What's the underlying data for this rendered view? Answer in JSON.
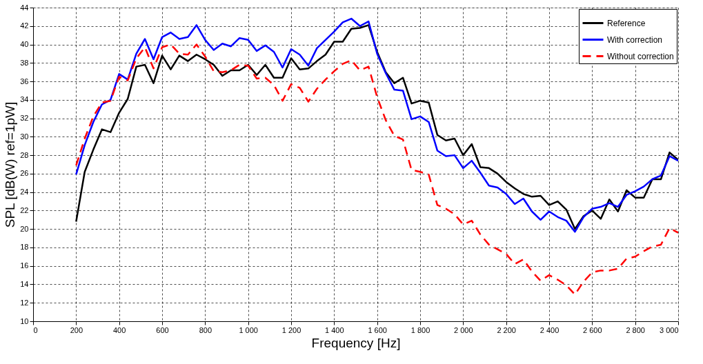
{
  "chart_data": {
    "type": "line",
    "xlabel": "Frequency [Hz]",
    "ylabel": "SPL [dB(W) ref=1pW]",
    "x": [
      200,
      240,
      280,
      320,
      360,
      400,
      440,
      480,
      520,
      560,
      600,
      640,
      680,
      720,
      760,
      800,
      840,
      880,
      920,
      960,
      1000,
      1040,
      1080,
      1120,
      1160,
      1200,
      1240,
      1280,
      1320,
      1360,
      1400,
      1440,
      1480,
      1520,
      1560,
      1600,
      1640,
      1680,
      1720,
      1760,
      1800,
      1840,
      1880,
      1920,
      1960,
      2000,
      2040,
      2080,
      2120,
      2160,
      2200,
      2240,
      2280,
      2320,
      2360,
      2400,
      2440,
      2480,
      2520,
      2560,
      2600,
      2640,
      2680,
      2720,
      2760,
      2800,
      2840,
      2880,
      2920,
      2960,
      3000
    ],
    "series": [
      {
        "name": "Reference",
        "color": "#000000",
        "line_style": "solid",
        "values": [
          20.8,
          26.2,
          28.6,
          30.8,
          30.5,
          32.6,
          34.1,
          37.6,
          37.8,
          35.8,
          38.8,
          37.3,
          38.8,
          38.2,
          38.9,
          38.4,
          37.8,
          36.6,
          37.2,
          37.2,
          37.8,
          36.7,
          37.8,
          36.4,
          36.4,
          38.5,
          37.3,
          37.4,
          38.2,
          38.9,
          40.3,
          40.3,
          41.7,
          41.8,
          42.1,
          39.2,
          37.0,
          35.8,
          36.4,
          33.6,
          33.9,
          33.7,
          30.2,
          29.6,
          29.8,
          28.0,
          29.2,
          26.7,
          26.6,
          26.0,
          25.1,
          24.4,
          23.8,
          23.5,
          23.6,
          22.6,
          23.0,
          22.1,
          20.0,
          21.4,
          22.0,
          21.1,
          23.2,
          21.9,
          24.2,
          23.4,
          23.4,
          25.4,
          25.4,
          28.3,
          27.5
        ]
      },
      {
        "name": "With correction",
        "color": "#0000ff",
        "line_style": "solid",
        "values": [
          25.9,
          29.1,
          31.6,
          33.5,
          34.0,
          36.8,
          36.2,
          39.0,
          40.6,
          38.4,
          40.8,
          41.3,
          40.6,
          40.8,
          42.1,
          40.5,
          39.4,
          40.1,
          39.8,
          40.7,
          40.5,
          39.3,
          39.9,
          39.2,
          37.5,
          39.5,
          38.9,
          37.7,
          39.6,
          40.5,
          41.4,
          42.4,
          42.8,
          42.0,
          42.5,
          39.0,
          36.9,
          35.1,
          35.0,
          31.9,
          32.2,
          31.6,
          28.5,
          27.9,
          28.0,
          26.6,
          27.4,
          26.1,
          24.7,
          24.5,
          23.8,
          22.7,
          23.3,
          21.9,
          21.0,
          21.9,
          21.3,
          20.9,
          19.7,
          21.3,
          22.2,
          22.4,
          22.8,
          22.4,
          23.7,
          24.1,
          24.6,
          25.4,
          25.8,
          27.9,
          27.4
        ]
      },
      {
        "name": "Without correction",
        "color": "#ff0000",
        "line_style": "dashed",
        "values": [
          26.9,
          29.8,
          32.2,
          33.7,
          33.9,
          36.5,
          36.1,
          38.5,
          39.7,
          37.4,
          39.7,
          40.0,
          39.0,
          38.9,
          40.0,
          38.7,
          37.1,
          37.0,
          37.2,
          37.8,
          37.7,
          36.3,
          36.4,
          35.6,
          33.9,
          35.7,
          35.3,
          33.8,
          35.2,
          36.2,
          37.1,
          37.9,
          38.3,
          37.2,
          37.6,
          34.3,
          31.8,
          30.1,
          29.7,
          26.4,
          26.2,
          25.9,
          22.6,
          22.2,
          21.6,
          20.5,
          20.9,
          19.4,
          18.3,
          17.8,
          17.3,
          16.2,
          16.7,
          15.4,
          14.4,
          15.0,
          14.5,
          13.9,
          12.9,
          14.3,
          15.3,
          15.5,
          15.5,
          15.7,
          16.8,
          17.0,
          17.6,
          18.1,
          18.3,
          20.1,
          19.6
        ]
      }
    ],
    "xlim": [
      0,
      3000
    ],
    "xticks": [
      0,
      200,
      400,
      600,
      800,
      {
        "value": 1000,
        "label": "1 000"
      },
      {
        "value": 1200,
        "label": "1 200"
      },
      {
        "value": 1400,
        "label": "1 400"
      },
      {
        "value": 1600,
        "label": "1 600"
      },
      {
        "value": 1800,
        "label": "1 800"
      },
      {
        "value": 2000,
        "label": "2 000"
      },
      {
        "value": 2200,
        "label": "2 200"
      },
      {
        "value": 2400,
        "label": "2 400"
      },
      {
        "value": 2600,
        "label": "2 600"
      },
      {
        "value": 2800,
        "label": "2 800"
      },
      {
        "value": 3000,
        "label": "3 000"
      }
    ],
    "ylim": [
      10,
      44
    ],
    "yticks": [
      10,
      12,
      14,
      16,
      18,
      20,
      22,
      24,
      26,
      28,
      30,
      32,
      34,
      36,
      38,
      40,
      42,
      44
    ],
    "grid": true,
    "legend": "top right",
    "marker": "none"
  }
}
